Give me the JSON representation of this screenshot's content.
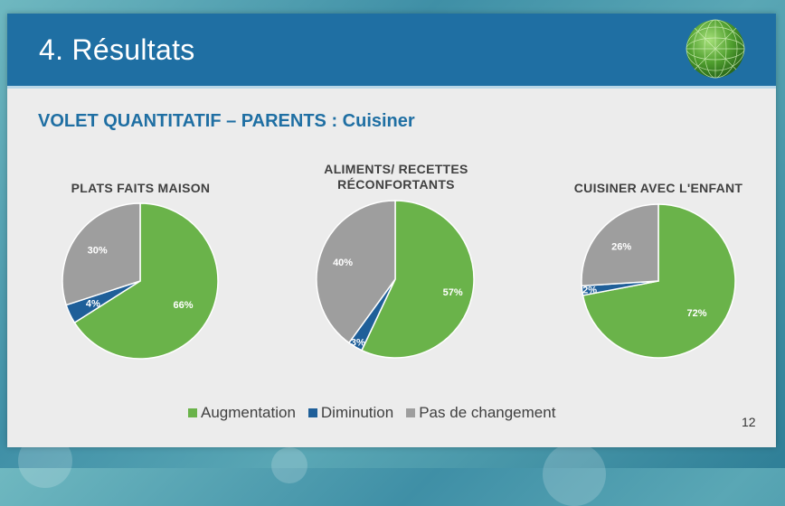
{
  "header": {
    "title": "4. Résultats",
    "logo_icon": "green-globe-logo"
  },
  "subtitle": "VOLET QUANTITATIF – PARENTS : Cuisiner",
  "colors": {
    "header_bg": "#1f6fa3",
    "augmentation": "#6ab34a",
    "diminution": "#1f5f99",
    "pas_de_changement": "#9e9e9e"
  },
  "chart_data": [
    {
      "type": "pie",
      "title": "PLATS FAITS MAISON",
      "categories": [
        "Augmentation",
        "Diminution",
        "Pas de changement"
      ],
      "values": [
        66,
        4,
        30
      ],
      "labels": [
        "66%",
        "4%",
        "30%"
      ]
    },
    {
      "type": "pie",
      "title": "ALIMENTS/ RECETTES RÉCONFORTANTS",
      "title_lines": [
        "ALIMENTS/ RECETTES",
        "RÉCONFORTANTS"
      ],
      "categories": [
        "Augmentation",
        "Diminution",
        "Pas de changement"
      ],
      "values": [
        57,
        3,
        40
      ],
      "labels": [
        "57%",
        "3%",
        "40%"
      ]
    },
    {
      "type": "pie",
      "title": "CUISINER AVEC L'ENFANT",
      "categories": [
        "Augmentation",
        "Diminution",
        "Pas de changement"
      ],
      "values": [
        72,
        2,
        26
      ],
      "labels": [
        "72%",
        "2%",
        "26%"
      ]
    }
  ],
  "legend": [
    "Augmentation",
    "Diminution",
    "Pas de changement"
  ],
  "page_number": "12"
}
